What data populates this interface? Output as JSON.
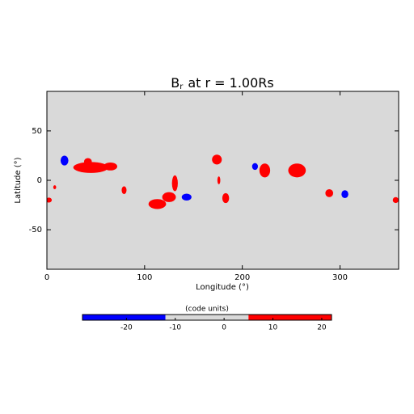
{
  "chart_data": {
    "type": "map",
    "title": "B",
    "title_subscript": "r",
    "title_rest": "at r = 1.00Rs",
    "x_label": "Longitude (°)",
    "y_label": "Latitude (°)",
    "xlim": [
      0,
      360
    ],
    "ylim": [
      -90,
      90
    ],
    "xticks": [
      0,
      100,
      200,
      300
    ],
    "yticks": [
      -50,
      0,
      50
    ],
    "background": "#d9d9d9",
    "colorbar": {
      "label": "(code units)",
      "lim": [
        -29,
        22
      ],
      "ticks": [
        -20,
        -10,
        0,
        10,
        20
      ],
      "segments": [
        {
          "from": -29,
          "to": -12,
          "color": "#0000ff"
        },
        {
          "from": -12,
          "to": 5,
          "color": "#d9d9d9"
        },
        {
          "from": 5,
          "to": 22,
          "color": "#ff0000"
        }
      ]
    },
    "regions": [
      {
        "lon": 18,
        "lat": 20,
        "width": 8,
        "height": 10,
        "value": -20
      },
      {
        "lon": 45,
        "lat": 13,
        "width": 36,
        "height": 11,
        "value": 20
      },
      {
        "lon": 42,
        "lat": 19,
        "width": 8,
        "height": 7,
        "value": 20
      },
      {
        "lon": 65,
        "lat": 14,
        "width": 14,
        "height": 8,
        "value": 20
      },
      {
        "lon": 2,
        "lat": -20,
        "width": 6,
        "height": 5,
        "value": 20
      },
      {
        "lon": 8,
        "lat": -7,
        "width": 3,
        "height": 4,
        "value": 20
      },
      {
        "lon": 79,
        "lat": -10,
        "width": 5,
        "height": 8,
        "value": 20
      },
      {
        "lon": 113,
        "lat": -24,
        "width": 18,
        "height": 10,
        "value": 20
      },
      {
        "lon": 125,
        "lat": -17,
        "width": 14,
        "height": 10,
        "value": 20
      },
      {
        "lon": 131,
        "lat": -3,
        "width": 6,
        "height": 16,
        "value": 20
      },
      {
        "lon": 143,
        "lat": -17,
        "width": 10,
        "height": 7,
        "value": -20
      },
      {
        "lon": 174,
        "lat": 21,
        "width": 10,
        "height": 10,
        "value": 20
      },
      {
        "lon": 176,
        "lat": 0,
        "width": 3,
        "height": 8,
        "value": 20
      },
      {
        "lon": 183,
        "lat": -18,
        "width": 7,
        "height": 10,
        "value": 20
      },
      {
        "lon": 213,
        "lat": 14,
        "width": 6,
        "height": 7,
        "value": -20
      },
      {
        "lon": 223,
        "lat": 10,
        "width": 11,
        "height": 14,
        "value": 20
      },
      {
        "lon": 256,
        "lat": 10,
        "width": 18,
        "height": 14,
        "value": 20
      },
      {
        "lon": 289,
        "lat": -13,
        "width": 8,
        "height": 8,
        "value": 20
      },
      {
        "lon": 305,
        "lat": -14,
        "width": 7,
        "height": 8,
        "value": -20
      },
      {
        "lon": 357,
        "lat": -20,
        "width": 6,
        "height": 6,
        "value": 20
      }
    ]
  }
}
